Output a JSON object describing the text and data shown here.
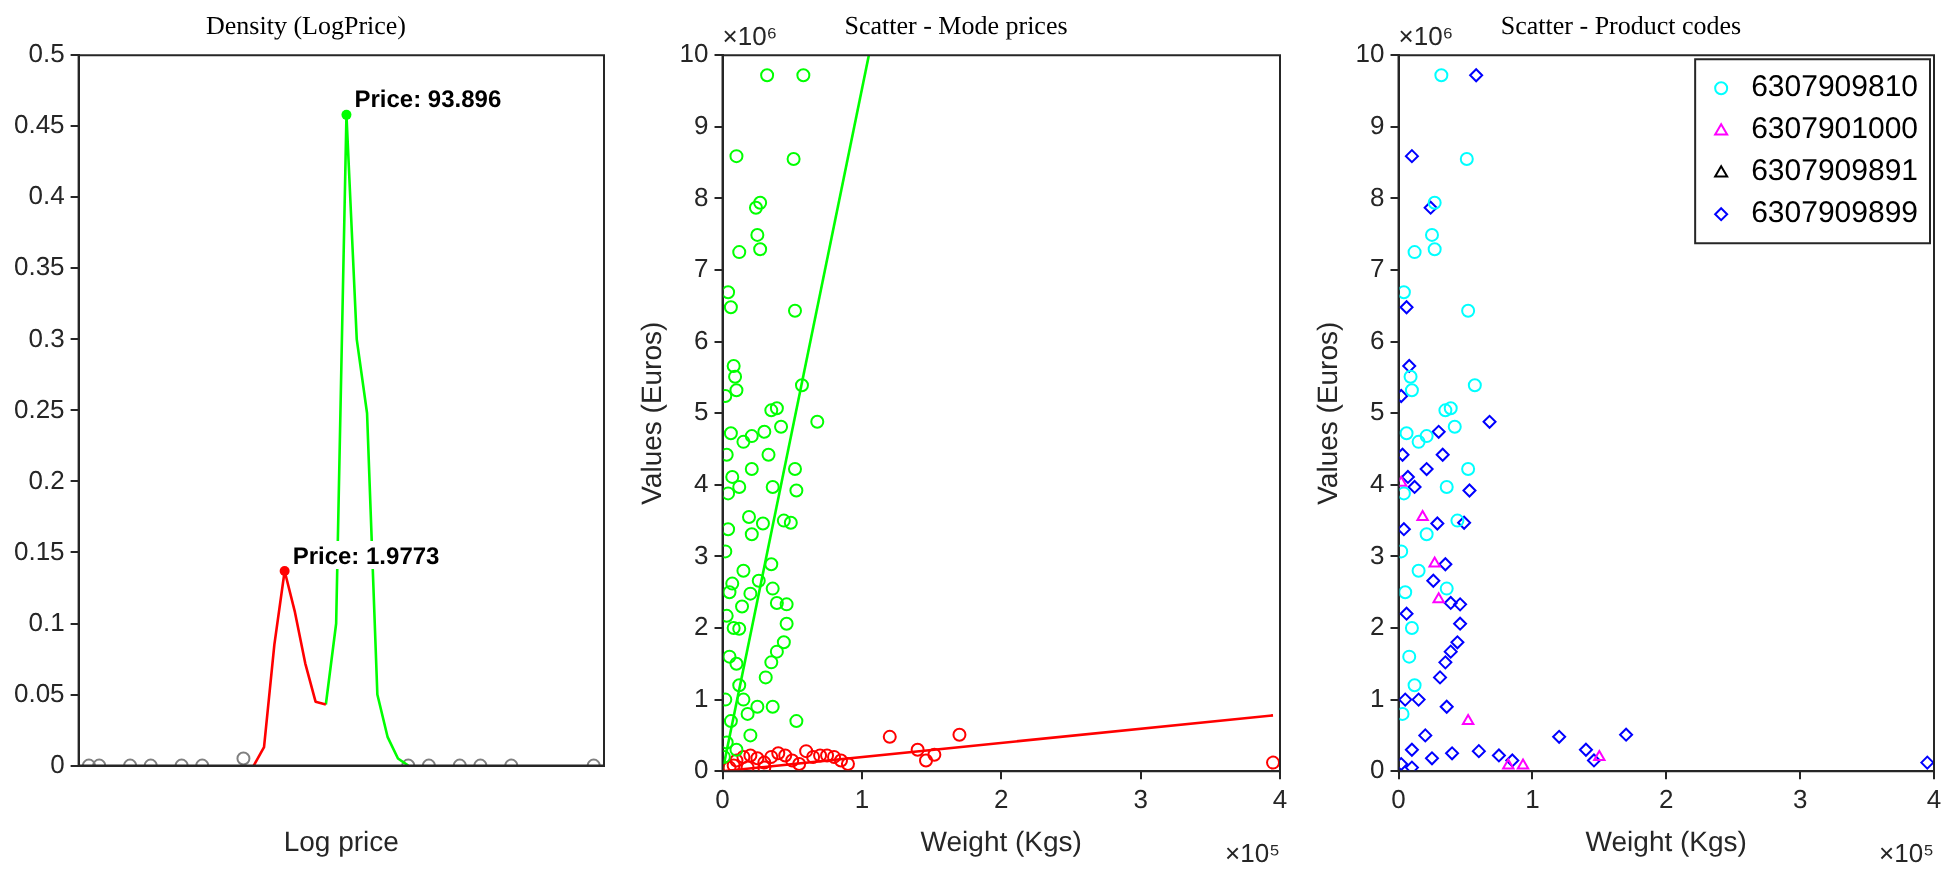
{
  "chart_data": [
    {
      "type": "line",
      "title": "Density (LogPrice)",
      "xlabel": "Log price",
      "categories": [
        null,
        null,
        null,
        null,
        null,
        null,
        null,
        null,
        null,
        null,
        null,
        null,
        null,
        null,
        null,
        null,
        null,
        null,
        null,
        null,
        null,
        null,
        null,
        null,
        null,
        null,
        null,
        null,
        null,
        null,
        null,
        null,
        null,
        null,
        null,
        null,
        null,
        null,
        null,
        null,
        null,
        null,
        null,
        null,
        null,
        null,
        null,
        null,
        null,
        null,
        null,
        null
      ],
      "series": [
        {
          "marker": "none",
          "color": "#ff0000",
          "values": [
            null,
            null,
            null,
            null,
            null,
            null,
            null,
            null,
            null,
            null,
            null,
            null,
            null,
            null,
            null,
            null,
            null,
            0,
            0.013,
            0.085,
            0.137,
            0.108,
            0.072,
            0.045,
            0.043,
            null,
            null,
            null,
            null,
            null,
            null,
            null,
            null,
            null,
            null,
            null,
            null,
            null,
            null,
            null,
            null,
            null,
            null,
            null,
            null,
            null,
            null,
            null,
            null,
            null,
            null,
            null
          ]
        },
        {
          "marker": "none",
          "color": "#00ff00",
          "values": [
            null,
            null,
            null,
            null,
            null,
            null,
            null,
            null,
            null,
            null,
            null,
            null,
            null,
            null,
            null,
            null,
            null,
            null,
            null,
            null,
            null,
            null,
            null,
            null,
            0.043,
            0.1,
            0.458,
            0.3,
            0.248,
            0.05,
            0.02,
            0.005,
            0,
            null,
            null,
            null,
            null,
            null,
            null,
            null,
            null,
            null,
            null,
            null,
            null,
            null,
            null,
            null,
            null,
            null,
            null,
            null
          ]
        },
        {
          "type": "scatter",
          "marker": "circle",
          "color": "#808080",
          "values": [
            null,
            0,
            0,
            null,
            null,
            0,
            null,
            0,
            null,
            null,
            0,
            null,
            0,
            null,
            null,
            null,
            0.005,
            null,
            null,
            null,
            null,
            null,
            null,
            null,
            null,
            null,
            null,
            null,
            null,
            null,
            null,
            null,
            0,
            null,
            0,
            null,
            null,
            0,
            null,
            0,
            null,
            null,
            0,
            null,
            null,
            null,
            null,
            null,
            null,
            null,
            0,
            null
          ]
        }
      ],
      "ylim": [
        0,
        0.5
      ],
      "yticks": [
        0,
        0.05,
        0.1,
        0.15,
        0.2,
        0.25,
        0.3,
        0.35,
        0.4,
        0.45,
        0.5
      ],
      "grid": false,
      "annotations": [
        "Price: 1.9773",
        "Price: 93.896"
      ]
    },
    {
      "type": "scatter",
      "title": "Scatter - Mode prices",
      "xlabel": "Weight (Kgs)",
      "ylabel": "Values (Euros)",
      "series": [
        {
          "marker": "circle",
          "color": "#00ff00",
          "x": [
            0.32,
            0.58,
            0.1,
            0.51,
            0.27,
            0.24,
            0.25,
            0.27,
            0.12,
            0.04,
            0.06,
            0.52,
            0.08,
            0.09,
            0.1,
            0.57,
            0.02,
            0.35,
            0.39,
            0.68,
            0.42,
            0.06,
            0.15,
            0.21,
            0.3,
            0.33,
            0.03,
            0.52,
            0.21,
            0.07,
            0.36,
            0.53,
            0.04,
            0.12,
            0.19,
            0.44,
            0.49,
            0.29,
            0.04,
            0.21,
            0.02,
            0.35,
            0.15,
            0.26,
            0.07,
            0.2,
            0.46,
            0.39,
            0.36,
            0.46,
            0.03,
            0.12,
            0.44,
            0.39,
            0.35,
            0.31,
            0.36,
            0.53,
            0.05,
            0.08,
            0.1,
            0.12,
            0.02,
            0.06,
            0.15,
            0.18,
            0.03,
            0.01,
            0.2,
            0.25,
            0.1,
            0.05,
            0.14
          ],
          "values": [
            9.72,
            9.72,
            8.59,
            8.55,
            7.94,
            7.87,
            7.49,
            7.29,
            7.25,
            6.69,
            6.48,
            6.43,
            5.66,
            5.51,
            5.32,
            5.39,
            5.24,
            5.04,
            5.07,
            4.88,
            4.81,
            4.72,
            4.6,
            4.68,
            4.74,
            4.42,
            4.42,
            4.22,
            4.22,
            4.11,
            3.97,
            3.92,
            3.88,
            3.97,
            3.55,
            3.5,
            3.47,
            3.46,
            3.38,
            3.31,
            3.07,
            2.89,
            2.8,
            2.66,
            2.62,
            2.48,
            2.33,
            2.35,
            2.55,
            2.06,
            2.17,
            1.99,
            1.8,
            1.67,
            1.52,
            1.31,
            0.9,
            0.7,
            2.5,
            2.0,
            1.5,
            1.2,
            1.0,
            0.7,
            1.0,
            0.8,
            0.4,
            0.2,
            0.5,
            0.9,
            0.3,
            1.6,
            2.3
          ]
        },
        {
          "marker": "circle",
          "color": "#ff0000",
          "x": [
            0.05,
            0.1,
            0.15,
            0.2,
            0.25,
            0.3,
            0.35,
            0.4,
            0.45,
            0.5,
            0.55,
            0.6,
            0.65,
            0.7,
            0.75,
            0.8,
            0.85,
            0.9,
            0.08,
            0.18,
            0.3,
            1.2,
            1.7,
            1.4,
            1.46,
            1.52,
            3.95
          ],
          "values": [
            0.05,
            0.15,
            0.2,
            0.22,
            0.18,
            0.12,
            0.2,
            0.25,
            0.22,
            0.15,
            0.1,
            0.28,
            0.2,
            0.22,
            0.22,
            0.2,
            0.15,
            0.1,
            0.08,
            0.05,
            0.05,
            0.48,
            0.51,
            0.3,
            0.15,
            0.23,
            0.12
          ]
        },
        {
          "type": "line",
          "marker": "none",
          "color": "#00ff00",
          "x": [
            0,
            1.05
          ],
          "values": [
            0,
            10
          ]
        },
        {
          "type": "line",
          "marker": "none",
          "color": "#ff0000",
          "x": [
            0,
            3.95
          ],
          "values": [
            0,
            0.78
          ]
        }
      ],
      "xlim": [
        0,
        4
      ],
      "xticks": [
        0,
        1,
        2,
        3,
        4
      ],
      "ylim": [
        0,
        10
      ],
      "yticks": [
        0,
        1,
        2,
        3,
        4,
        5,
        6,
        7,
        8,
        9,
        10
      ],
      "grid": false,
      "annotations": [
        "×10⁶",
        "×10⁵"
      ]
    },
    {
      "type": "scatter",
      "title": "Scatter - Product codes",
      "xlabel": "Weight (Kgs)",
      "ylabel": "Values (Euros)",
      "series": [
        {
          "name": "6307909810",
          "marker": "circle",
          "color": "#00ffff",
          "x": [
            0.32,
            0.51,
            0.27,
            0.25,
            0.27,
            0.12,
            0.04,
            0.52,
            0.09,
            0.1,
            0.57,
            0.35,
            0.39,
            0.42,
            0.06,
            0.15,
            0.21,
            0.52,
            0.36,
            0.04,
            0.44,
            0.21,
            0.02,
            0.15,
            0.36,
            0.05,
            0.1,
            0.08,
            0.12,
            0.03
          ],
          "values": [
            9.72,
            8.55,
            7.94,
            7.49,
            7.29,
            7.25,
            6.69,
            6.43,
            5.51,
            5.32,
            5.39,
            5.04,
            5.07,
            4.81,
            4.72,
            4.6,
            4.68,
            4.22,
            3.97,
            3.88,
            3.5,
            3.31,
            3.07,
            2.8,
            2.55,
            2.5,
            2.0,
            1.6,
            1.2,
            0.8
          ]
        },
        {
          "name": "6307901000",
          "marker": "triangle",
          "color": "#ff00ff",
          "x": [
            0.02,
            0.18,
            0.27,
            0.3,
            0.52,
            0.82,
            0.93,
            1.5
          ],
          "values": [
            4.03,
            3.55,
            2.9,
            2.4,
            0.7,
            0.08,
            0.08,
            0.2
          ]
        },
        {
          "name": "6307909891",
          "marker": "triangle",
          "color": "#000000"
        },
        {
          "name": "6307909899",
          "marker": "diamond",
          "color": "#0000ff",
          "x": [
            0.58,
            0.1,
            0.24,
            0.06,
            0.08,
            0.02,
            0.68,
            0.3,
            0.33,
            0.03,
            0.21,
            0.07,
            0.53,
            0.12,
            0.49,
            0.04,
            0.29,
            0.35,
            0.26,
            0.46,
            0.39,
            0.46,
            0.44,
            0.39,
            0.35,
            0.31,
            0.36,
            0.2,
            0.1,
            0.05,
            0.15,
            0.06,
            1.2,
            1.7,
            1.4,
            1.46,
            0.6,
            0.75,
            0.85,
            3.95,
            0.25,
            0.4,
            0.02,
            0.1
          ],
          "values": [
            9.72,
            8.59,
            7.87,
            6.48,
            5.66,
            5.24,
            4.88,
            4.74,
            4.42,
            4.42,
            4.22,
            4.11,
            3.92,
            3.97,
            3.47,
            3.38,
            3.46,
            2.89,
            2.66,
            2.33,
            2.35,
            2.06,
            1.8,
            1.67,
            1.52,
            1.31,
            0.9,
            0.5,
            0.3,
            1.0,
            1.0,
            2.2,
            0.48,
            0.51,
            0.3,
            0.15,
            0.28,
            0.22,
            0.15,
            0.12,
            0.18,
            0.25,
            0.1,
            0.05
          ]
        }
      ],
      "xlim": [
        0,
        4
      ],
      "xticks": [
        0,
        1,
        2,
        3,
        4
      ],
      "ylim": [
        0,
        10
      ],
      "yticks": [
        0,
        1,
        2,
        3,
        4,
        5,
        6,
        7,
        8,
        9,
        10
      ],
      "grid": false,
      "legend": "top right",
      "annotations": [
        "×10⁶",
        "×10⁵"
      ]
    }
  ]
}
